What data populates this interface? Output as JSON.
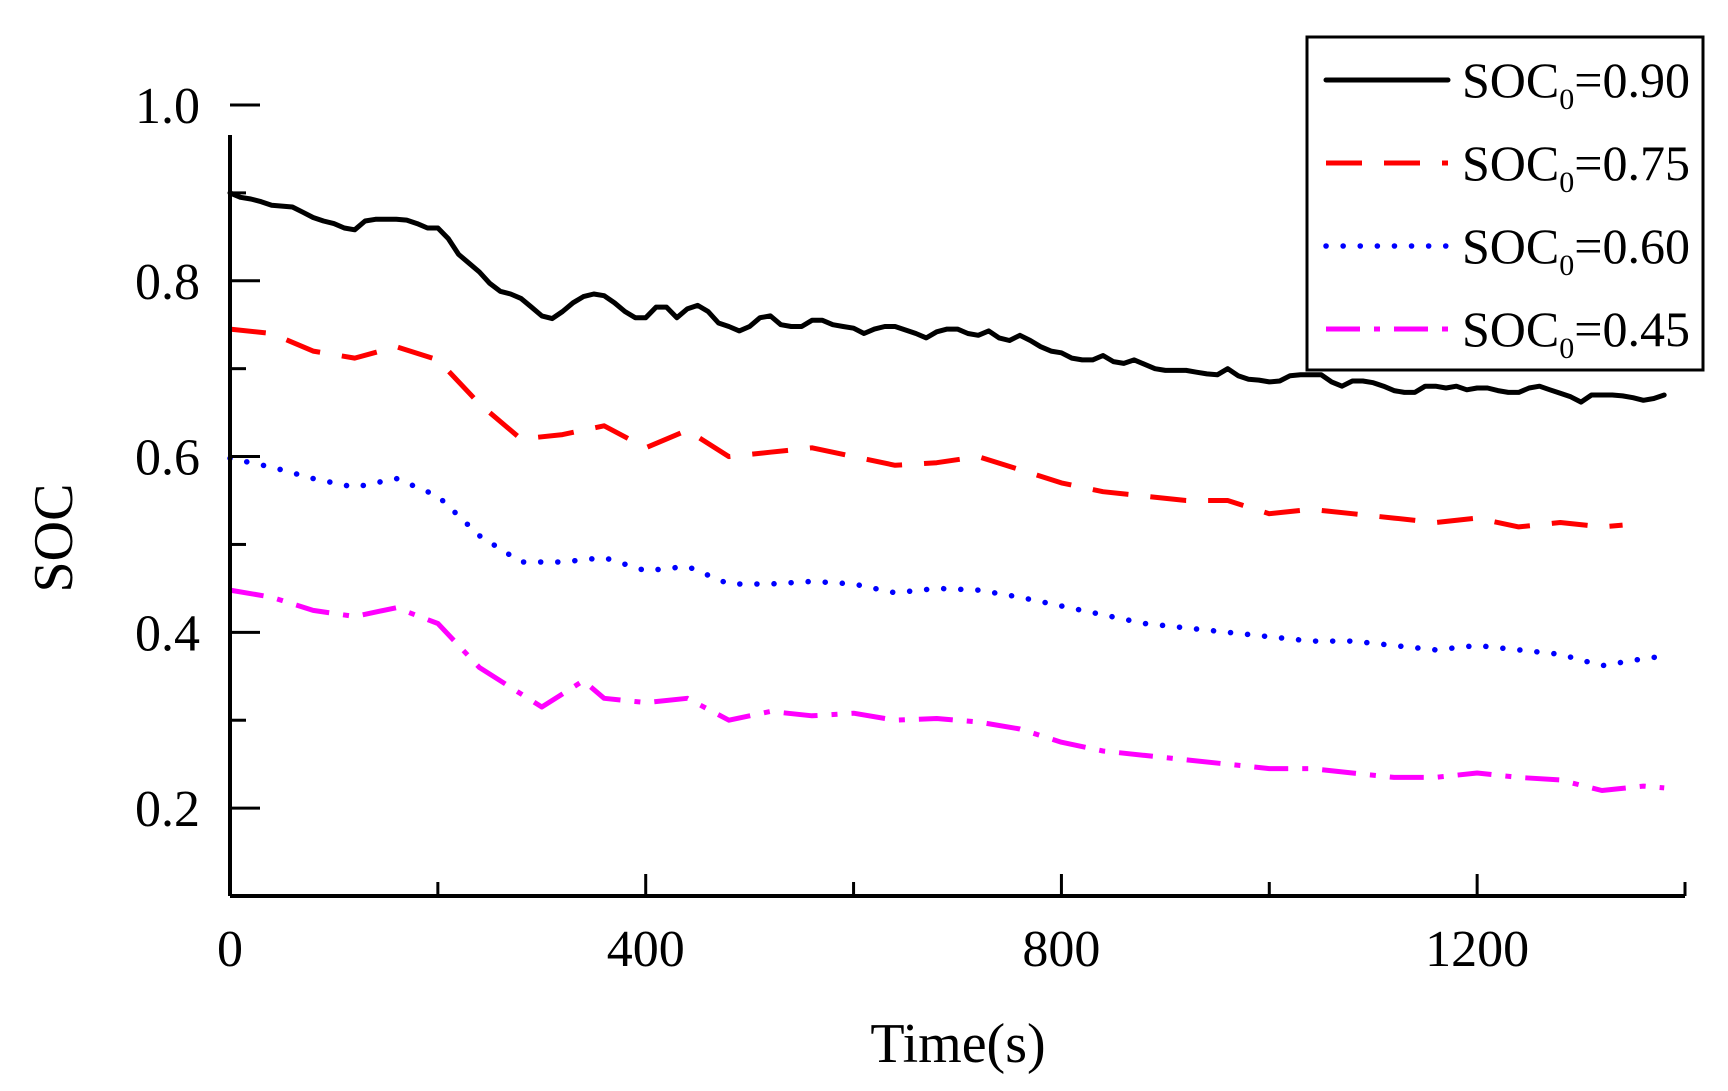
{
  "chart_data": {
    "type": "line",
    "title": "",
    "xlabel": "Time(s)",
    "ylabel": "SOC",
    "xlim": [
      0,
      1400
    ],
    "ylim": [
      0.1,
      1.0
    ],
    "x_ticks": [
      0,
      400,
      800,
      1200
    ],
    "y_ticks": [
      0.2,
      0.4,
      0.6,
      0.8,
      1.0
    ],
    "x_tick_labels": [
      "0",
      "400",
      "800",
      "1200"
    ],
    "y_tick_labels": [
      "0.2",
      "0.4",
      "0.6",
      "0.8",
      "1.0"
    ],
    "grid": false,
    "legend_position": "top-right",
    "series": [
      {
        "name": "SOC0=0.90",
        "legend_prefix": "SOC",
        "legend_sub": "0",
        "legend_suffix": "=0.90",
        "color": "#000000",
        "style": "solid",
        "x": [
          0,
          10,
          20,
          30,
          40,
          50,
          60,
          70,
          80,
          90,
          100,
          110,
          120,
          130,
          140,
          150,
          160,
          170,
          180,
          190,
          200,
          210,
          220,
          230,
          240,
          250,
          260,
          270,
          280,
          290,
          300,
          310,
          320,
          330,
          340,
          350,
          360,
          370,
          380,
          390,
          400,
          410,
          420,
          430,
          440,
          450,
          460,
          470,
          480,
          490,
          500,
          510,
          520,
          530,
          540,
          550,
          560,
          570,
          580,
          590,
          600,
          610,
          620,
          630,
          640,
          650,
          660,
          670,
          680,
          690,
          700,
          710,
          720,
          730,
          740,
          750,
          760,
          770,
          780,
          790,
          800,
          810,
          820,
          830,
          840,
          850,
          860,
          870,
          880,
          890,
          900,
          910,
          920,
          930,
          940,
          950,
          960,
          970,
          980,
          990,
          1000,
          1010,
          1020,
          1030,
          1040,
          1050,
          1060,
          1070,
          1080,
          1090,
          1100,
          1110,
          1120,
          1130,
          1140,
          1150,
          1160,
          1170,
          1180,
          1190,
          1200,
          1210,
          1220,
          1230,
          1240,
          1250,
          1260,
          1270,
          1280,
          1290,
          1300,
          1310,
          1320,
          1330,
          1340,
          1350,
          1360,
          1370,
          1380
        ],
        "y": [
          0.9,
          0.895,
          0.893,
          0.89,
          0.886,
          0.885,
          0.884,
          0.878,
          0.872,
          0.868,
          0.865,
          0.86,
          0.858,
          0.868,
          0.87,
          0.87,
          0.87,
          0.869,
          0.865,
          0.86,
          0.86,
          0.848,
          0.83,
          0.82,
          0.81,
          0.797,
          0.788,
          0.785,
          0.78,
          0.77,
          0.76,
          0.757,
          0.765,
          0.775,
          0.782,
          0.785,
          0.783,
          0.775,
          0.765,
          0.758,
          0.758,
          0.77,
          0.77,
          0.758,
          0.768,
          0.772,
          0.765,
          0.752,
          0.748,
          0.743,
          0.748,
          0.758,
          0.76,
          0.75,
          0.748,
          0.748,
          0.755,
          0.755,
          0.75,
          0.748,
          0.746,
          0.74,
          0.745,
          0.748,
          0.748,
          0.744,
          0.74,
          0.735,
          0.742,
          0.745,
          0.745,
          0.74,
          0.738,
          0.743,
          0.735,
          0.732,
          0.738,
          0.732,
          0.725,
          0.72,
          0.718,
          0.712,
          0.71,
          0.71,
          0.715,
          0.708,
          0.706,
          0.71,
          0.705,
          0.7,
          0.698,
          0.698,
          0.698,
          0.696,
          0.694,
          0.693,
          0.7,
          0.692,
          0.688,
          0.687,
          0.685,
          0.686,
          0.692,
          0.693,
          0.693,
          0.693,
          0.685,
          0.68,
          0.686,
          0.686,
          0.684,
          0.68,
          0.675,
          0.673,
          0.673,
          0.68,
          0.68,
          0.678,
          0.68,
          0.676,
          0.678,
          0.678,
          0.675,
          0.673,
          0.673,
          0.678,
          0.68,
          0.676,
          0.672,
          0.668,
          0.662,
          0.67,
          0.67,
          0.67,
          0.669,
          0.667,
          0.664,
          0.666,
          0.67
        ]
      },
      {
        "name": "SOC0=0.75",
        "legend_prefix": "SOC",
        "legend_sub": "0",
        "legend_suffix": "=0.75",
        "color": "#ff0000",
        "style": "dash",
        "x": [
          0,
          40,
          80,
          120,
          160,
          200,
          240,
          280,
          320,
          360,
          400,
          440,
          480,
          520,
          560,
          600,
          640,
          680,
          720,
          760,
          800,
          840,
          880,
          920,
          960,
          1000,
          1040,
          1080,
          1120,
          1160,
          1200,
          1240,
          1280,
          1320,
          1340
        ],
        "y": [
          0.745,
          0.74,
          0.72,
          0.712,
          0.725,
          0.71,
          0.66,
          0.62,
          0.625,
          0.635,
          0.61,
          0.63,
          0.6,
          0.605,
          0.61,
          0.6,
          0.59,
          0.593,
          0.6,
          0.585,
          0.57,
          0.56,
          0.555,
          0.55,
          0.55,
          0.535,
          0.54,
          0.535,
          0.53,
          0.525,
          0.53,
          0.52,
          0.525,
          0.52,
          0.522
        ]
      },
      {
        "name": "SOC0=0.60",
        "legend_prefix": "SOC",
        "legend_sub": "0",
        "legend_suffix": "=0.60",
        "color": "#0000ff",
        "style": "dot",
        "x": [
          0,
          40,
          80,
          120,
          160,
          200,
          240,
          280,
          320,
          360,
          400,
          440,
          480,
          520,
          560,
          600,
          640,
          680,
          720,
          760,
          800,
          840,
          880,
          920,
          960,
          1000,
          1040,
          1080,
          1120,
          1160,
          1200,
          1240,
          1280,
          1320,
          1360,
          1380
        ],
        "y": [
          0.598,
          0.588,
          0.575,
          0.565,
          0.575,
          0.555,
          0.51,
          0.48,
          0.48,
          0.485,
          0.47,
          0.475,
          0.455,
          0.455,
          0.458,
          0.455,
          0.445,
          0.45,
          0.448,
          0.44,
          0.43,
          0.42,
          0.41,
          0.405,
          0.4,
          0.395,
          0.39,
          0.39,
          0.385,
          0.38,
          0.385,
          0.38,
          0.375,
          0.362,
          0.37,
          0.373
        ]
      },
      {
        "name": "SOC0=0.45",
        "legend_prefix": "SOC",
        "legend_sub": "0",
        "legend_suffix": "=0.45",
        "color": "#ff00ff",
        "style": "dashdot",
        "x": [
          0,
          40,
          80,
          120,
          160,
          200,
          240,
          280,
          300,
          320,
          340,
          360,
          400,
          440,
          480,
          520,
          560,
          600,
          640,
          680,
          720,
          760,
          800,
          840,
          880,
          920,
          960,
          1000,
          1040,
          1080,
          1120,
          1160,
          1200,
          1240,
          1280,
          1320,
          1360,
          1380
        ],
        "y": [
          0.448,
          0.44,
          0.425,
          0.418,
          0.428,
          0.41,
          0.36,
          0.33,
          0.315,
          0.33,
          0.345,
          0.325,
          0.32,
          0.325,
          0.3,
          0.31,
          0.305,
          0.308,
          0.3,
          0.302,
          0.298,
          0.29,
          0.275,
          0.265,
          0.26,
          0.255,
          0.25,
          0.245,
          0.245,
          0.24,
          0.235,
          0.235,
          0.24,
          0.235,
          0.232,
          0.22,
          0.225,
          0.223
        ]
      }
    ]
  }
}
